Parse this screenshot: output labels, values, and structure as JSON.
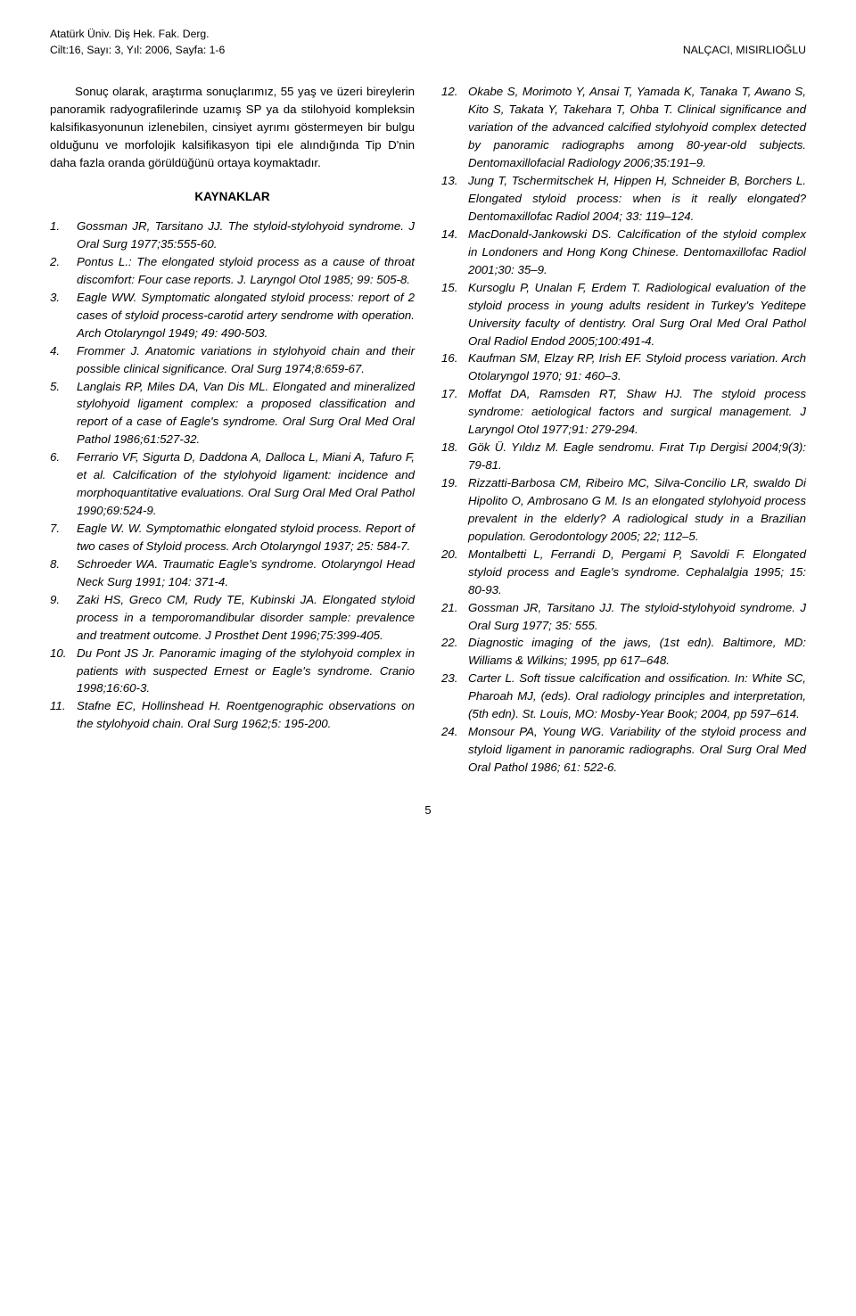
{
  "header": {
    "journal": "Atatürk Üniv. Diş Hek. Fak. Derg.",
    "issue": "Cilt:16, Sayı: 3, Yıl: 2006, Sayfa: 1-6",
    "authors": "NALÇACI, MISIRLIOĞLU"
  },
  "intro": "Sonuç olarak, araştırma sonuçlarımız, 55 yaş ve üzeri bireylerin panoramik radyografilerinde uzamış SP ya da stilohyoid kompleksin kalsifikasyonunun izlenebilen, cinsiyet ayrımı göstermeyen bir bulgu olduğunu ve morfolojik kalsifikasyon tipi ele alındığında Tip D'nin daha fazla oranda görüldüğünü ortaya koymaktadır.",
  "kaynaklarHeading": "KAYNAKLAR",
  "leftStart": 1,
  "leftRefs": [
    "Gossman JR, Tarsitano JJ. The styloid-stylohyoid syndrome. J Oral Surg 1977;35:555-60.",
    "Pontus L.: The elongated styloid process as a cause of throat discomfort: Four case reports. J. Laryngol Otol 1985; 99: 505-8.",
    "Eagle WW. Symptomatic alongated styloid process: report of 2 cases of styloid process-carotid artery sendrome with operation. Arch Otolaryngol 1949; 49: 490-503.",
    "Frommer J. Anatomic variations in stylohyoid chain and their possible clinical significance. Oral Surg 1974;8:659-67.",
    "Langlais RP, Miles DA, Van Dis ML. Elongated and mineralized stylohyoid ligament complex: a proposed classification and report of a case of Eagle's syndrome. Oral Surg Oral Med Oral Pathol 1986;61:527-32.",
    "Ferrario VF, Sigurta D, Daddona A, Dalloca L, Miani A, Tafuro F, et al. Calcification of the stylohyoid ligament: incidence and morphoquantitative evaluations. Oral Surg Oral Med Oral Pathol 1990;69:524-9.",
    "Eagle W. W. Symptomathic elongated styloid process. Report of two cases of Styloid process. Arch Otolaryngol 1937; 25: 584-7.",
    "Schroeder WA. Traumatic Eagle's syndrome. Otolaryngol Head Neck Surg 1991; 104: 371-4.",
    "Zaki HS, Greco CM, Rudy TE, Kubinski JA. Elongated styloid process in a temporomandibular disorder sample: prevalence and treatment outcome. J Prosthet Dent 1996;75:399-405.",
    "Du Pont JS Jr. Panoramic imaging of the stylohyoid complex in patients with suspected Ernest or Eagle's syndrome. Cranio 1998;16:60-3.",
    "Stafne EC, Hollinshead H. Roentgenographic observations on the stylohyoid chain. Oral Surg 1962;5: 195-200."
  ],
  "rightStart": 12,
  "rightRefs": [
    "Okabe S, Morimoto Y, Ansai T, Yamada K, Tanaka T, Awano S, Kito S, Takata Y, Takehara T, Ohba T. Clinical significance and variation of the advanced calcified stylohyoid complex detected by panoramic radiographs among 80-year-old subjects. Dentomaxillofacial Radiology 2006;35:191–9.",
    "Jung T, Tschermitschek H, Hippen H, Schneider B, Borchers L. Elongated styloid process: when is it really elongated? Dentomaxillofac Radiol 2004; 33: 119–124.",
    "MacDonald-Jankowski DS. Calcification of the styloid complex in Londoners and Hong Kong Chinese. Dentomaxillofac Radiol 2001;30: 35–9.",
    "Kursoglu P, Unalan F, Erdem T. Radiological evaluation of the styloid process in young adults resident in Turkey's Yeditepe University faculty of dentistry. Oral Surg Oral Med Oral Pathol Oral Radiol Endod 2005;100:491-4.",
    "Kaufman SM, Elzay RP, Irish EF. Styloid process variation. Arch Otolaryngol 1970; 91: 460–3.",
    "Moffat DA, Ramsden RT, Shaw HJ. The styloid process syndrome: aetiological factors and surgical management. J Laryngol Otol 1977;91: 279-294.",
    "Gök Ü. Yıldız M. Eagle sendromu. Fırat Tıp Dergisi 2004;9(3): 79-81.",
    "Rizzatti-Barbosa CM, Ribeiro MC, Silva-Concilio LR, swaldo Di Hipolito  O, Ambrosano G M. Is an elongated stylohyoid process prevalent in the elderly? A radiological study in a Brazilian population. Gerodontology 2005; 22; 112–5.",
    "Montalbetti L, Ferrandi D, Pergami P, Savoldi F. Elongated styloid process and Eagle's syndrome. Cephalalgia 1995; 15: 80-93.",
    "Gossman JR, Tarsitano JJ. The styloid-stylohyoid syndrome. J Oral Surg 1977; 35: 555.",
    "Diagnostic imaging of the jaws, (1st edn). Baltimore, MD: Williams & Wilkins; 1995, pp 617–648.",
    "Carter L. Soft tissue calcification and ossification. In: White SC, Pharoah MJ, (eds). Oral radiology principles and interpretation, (5th edn). St. Louis, MO: Mosby-Year Book; 2004, pp 597–614.",
    "Monsour PA, Young WG. Variability of the styloid process and styloid ligament in panoramic radiographs. Oral Surg Oral Med Oral Pathol 1986; 61: 522-6."
  ],
  "pageNumber": "5"
}
